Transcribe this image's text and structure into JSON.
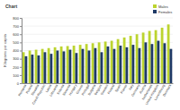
{
  "chart_data": {
    "type": "bar",
    "title": "Chart",
    "y_label": "Kilograms per capita",
    "categories": [
      "Romania",
      "Poland",
      "Slovakia",
      "Czech Republic",
      "Latvia",
      "Lithuania",
      "Estonia",
      "Slovenia",
      "Hungary",
      "Greece",
      "Portugal",
      "Bulgaria",
      "Belgium",
      "Sweden",
      "Finland",
      "Spain",
      "France",
      "Italy",
      "Germany",
      "Austria",
      "Netherlands",
      "United Kingdom",
      "Luxembourg",
      "Denmark"
    ],
    "series": [
      {
        "name": "Males",
        "color": "#bcd42f",
        "values": [
          380,
          400,
          410,
          420,
          430,
          440,
          450,
          455,
          460,
          470,
          480,
          490,
          500,
          510,
          520,
          540,
          560,
          580,
          600,
          620,
          640,
          650,
          680,
          720
        ]
      },
      {
        "name": "Females",
        "color": "#1f3a66",
        "values": [
          330,
          350,
          340,
          380,
          360,
          400,
          390,
          410,
          370,
          420,
          400,
          430,
          380,
          450,
          420,
          460,
          440,
          470,
          430,
          500,
          480,
          520,
          490,
          420
        ]
      }
    ],
    "ylim": [
      0,
      800
    ],
    "yticks": [
      0,
      100,
      200,
      300,
      400,
      500,
      600,
      700,
      800
    ],
    "grid": true,
    "legend": "top-right"
  }
}
